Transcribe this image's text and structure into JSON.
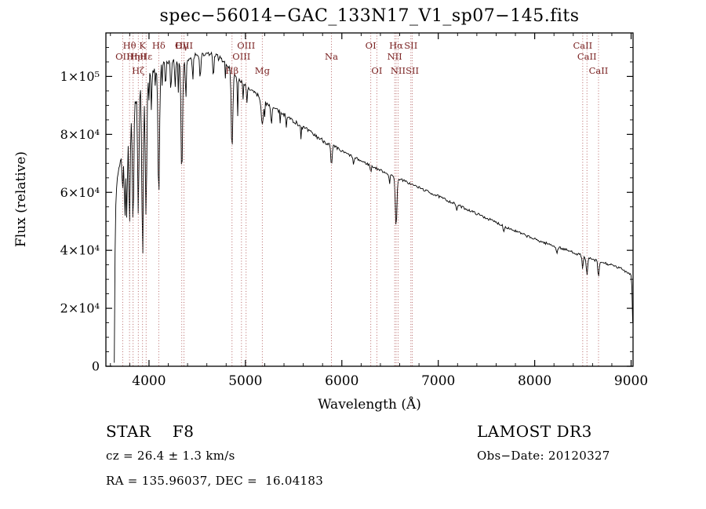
{
  "colors": {
    "background": "#ffffff",
    "spectrum": "#000000",
    "axis": "#000000",
    "marker_line": "#b05858",
    "marker_label": "#7a2222"
  },
  "footer": {
    "class_label": "STAR    F8",
    "cz": "cz = 26.4 ± 1.3 km/s",
    "radec": "RA = 135.96037, DEC =  16.04183",
    "survey": "LAMOST DR3",
    "obs_date": "Obs−Date: 20120327"
  },
  "chart_data": {
    "type": "line",
    "title": "spec−56014−GAC_133N17_V1_sp07−145.fits",
    "xlabel": "Wavelength (Å)",
    "ylabel": "Flux (relative)",
    "xlim": [
      3553,
      9020
    ],
    "ylim": [
      0,
      115000
    ],
    "grid": false,
    "legend": "none",
    "xticks": {
      "values": [
        4000,
        5000,
        6000,
        7000,
        8000,
        9000
      ],
      "labels": [
        "4000",
        "5000",
        "6000",
        "7000",
        "8000",
        "9000"
      ]
    },
    "yticks": {
      "values": [
        0,
        20000,
        40000,
        60000,
        80000,
        100000
      ],
      "labels": [
        "0",
        "2×10⁴",
        "4×10⁴",
        "6×10⁴",
        "8×10⁴",
        "1×10⁵"
      ]
    },
    "x_minor_step": 200,
    "y_minor_step": 5000,
    "continuum": [
      [
        3640,
        2500
      ],
      [
        3648,
        40000
      ],
      [
        3658,
        58000
      ],
      [
        3672,
        65000
      ],
      [
        3690,
        69000
      ],
      [
        3715,
        72500
      ],
      [
        3745,
        76500
      ],
      [
        3785,
        83500
      ],
      [
        3825,
        88000
      ],
      [
        3865,
        92000
      ],
      [
        3912,
        96000
      ],
      [
        3962,
        98200
      ],
      [
        4012,
        100200
      ],
      [
        4062,
        101600
      ],
      [
        4112,
        102600
      ],
      [
        4162,
        104000
      ],
      [
        4212,
        104800
      ],
      [
        4262,
        105100
      ],
      [
        4312,
        105300
      ],
      [
        4362,
        105600
      ],
      [
        4412,
        106100
      ],
      [
        4472,
        106800
      ],
      [
        4542,
        107300
      ],
      [
        4612,
        107800
      ],
      [
        4662,
        107500
      ],
      [
        4722,
        106800
      ],
      [
        4782,
        105000
      ],
      [
        4832,
        103200
      ],
      [
        4882,
        101200
      ],
      [
        4932,
        99200
      ],
      [
        4982,
        97600
      ],
      [
        5042,
        95600
      ],
      [
        5112,
        94000
      ],
      [
        5182,
        91600
      ],
      [
        5252,
        89900
      ],
      [
        5322,
        88500
      ],
      [
        5402,
        86800
      ],
      [
        5482,
        85000
      ],
      [
        5562,
        83200
      ],
      [
        5652,
        81200
      ],
      [
        5742,
        79200
      ],
      [
        5832,
        77300
      ],
      [
        5922,
        75600
      ],
      [
        6012,
        74000
      ],
      [
        6102,
        72500
      ],
      [
        6202,
        70800
      ],
      [
        6302,
        69200
      ],
      [
        6402,
        67600
      ],
      [
        6502,
        66100
      ],
      [
        6602,
        64600
      ],
      [
        6702,
        63100
      ],
      [
        6802,
        61600
      ],
      [
        6902,
        60100
      ],
      [
        7002,
        58600
      ],
      [
        7102,
        57100
      ],
      [
        7202,
        55600
      ],
      [
        7302,
        54100
      ],
      [
        7402,
        52600
      ],
      [
        7502,
        51100
      ],
      [
        7602,
        49600
      ],
      [
        7702,
        48100
      ],
      [
        7802,
        46600
      ],
      [
        7902,
        45200
      ],
      [
        8002,
        43800
      ],
      [
        8102,
        42600
      ],
      [
        8202,
        41500
      ],
      [
        8302,
        40400
      ],
      [
        8402,
        39300
      ],
      [
        8502,
        38000
      ],
      [
        8602,
        36800
      ],
      [
        8702,
        35800
      ],
      [
        8802,
        34800
      ],
      [
        8902,
        33600
      ],
      [
        8952,
        32600
      ],
      [
        8992,
        31900
      ],
      [
        9002,
        31000
      ],
      [
        9008,
        27500
      ],
      [
        9013,
        21000
      ],
      [
        9016,
        15500
      ]
    ],
    "absorption_lines": [
      [
        3727,
        12000,
        7
      ],
      [
        3750,
        26000,
        6
      ],
      [
        3770,
        30000,
        6
      ],
      [
        3798,
        36000,
        7
      ],
      [
        3835,
        40000,
        7
      ],
      [
        3889,
        42000,
        7
      ],
      [
        3933,
        52000,
        8
      ],
      [
        3969,
        46000,
        8
      ],
      [
        4026,
        8000,
        5
      ],
      [
        4101,
        45000,
        8
      ],
      [
        4172,
        9000,
        5
      ],
      [
        4227,
        12000,
        5
      ],
      [
        4271,
        9000,
        5
      ],
      [
        4340,
        40000,
        8
      ],
      [
        4383,
        14000,
        5
      ],
      [
        4455,
        8000,
        5
      ],
      [
        4531,
        9000,
        5
      ],
      [
        4668,
        9000,
        5
      ],
      [
        4861,
        28000,
        8
      ],
      [
        4920,
        7000,
        5
      ],
      [
        5015,
        6000,
        5
      ],
      [
        5175,
        9000,
        10
      ],
      [
        5270,
        6000,
        6
      ],
      [
        5892,
        7500,
        7
      ],
      [
        6122,
        3000,
        5
      ],
      [
        6300,
        2500,
        5
      ],
      [
        6495,
        3500,
        5
      ],
      [
        6563,
        17500,
        8
      ],
      [
        7190,
        2000,
        6
      ],
      [
        7680,
        2000,
        6
      ],
      [
        8230,
        2500,
        6
      ],
      [
        8498,
        4500,
        6
      ],
      [
        8542,
        6500,
        7
      ],
      [
        8662,
        5500,
        7
      ]
    ],
    "noise": {
      "seed": 7,
      "step": 8,
      "amp_blue": 1300,
      "amp_mid": 750,
      "amp_red": 450
    },
    "spectral_markers": [
      {
        "label": "Hθ",
        "wavelength": 3798,
        "row": 1
      },
      {
        "label": "K",
        "wavelength": 3933,
        "row": 1
      },
      {
        "label": "Hδ",
        "wavelength": 4101,
        "row": 1
      },
      {
        "label": "Hγ",
        "wavelength": 4340,
        "row": 1
      },
      {
        "label": "OIII",
        "wavelength": 4363,
        "row": 1
      },
      {
        "label": "OIII",
        "wavelength": 5007,
        "row": 1
      },
      {
        "label": "OI",
        "wavelength": 6300,
        "row": 1
      },
      {
        "label": "Hα",
        "wavelength": 6563,
        "row": 1
      },
      {
        "label": "SII",
        "wavelength": 6716,
        "row": 1
      },
      {
        "label": "CaII",
        "wavelength": 8498,
        "row": 1
      },
      {
        "label": "OII",
        "wavelength": 3727,
        "row": 2
      },
      {
        "label": "Hη",
        "wavelength": 3835,
        "row": 2
      },
      {
        "label": "HeI",
        "wavelength": 3889,
        "row": 2
      },
      {
        "label": "Hε",
        "wavelength": 3970,
        "row": 2
      },
      {
        "label": "OIII",
        "wavelength": 4959,
        "row": 2
      },
      {
        "label": "Na",
        "wavelength": 5892,
        "row": 2
      },
      {
        "label": "NII",
        "wavelength": 6548,
        "row": 2
      },
      {
        "label": "CaII",
        "wavelength": 8542,
        "row": 2
      },
      {
        "label": "Hζ",
        "wavelength": 3889,
        "row": 3
      },
      {
        "label": "Hβ",
        "wavelength": 4861,
        "row": 3
      },
      {
        "label": "Mg",
        "wavelength": 5175,
        "row": 3
      },
      {
        "label": "OI",
        "wavelength": 6363,
        "row": 3
      },
      {
        "label": "NII",
        "wavelength": 6583,
        "row": 3
      },
      {
        "label": "SII",
        "wavelength": 6731,
        "row": 3
      },
      {
        "label": "CaII",
        "wavelength": 8662,
        "row": 3
      }
    ]
  }
}
